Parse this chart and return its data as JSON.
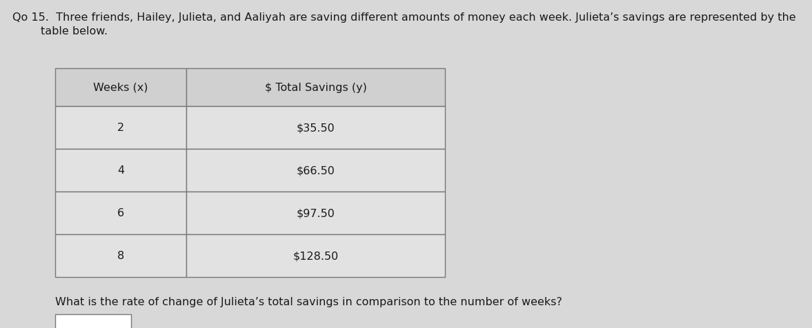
{
  "line1": "Qo 15.  Three friends, Hailey, Julieta, and Aaliyah are saving different amounts of money each week. Julieta’s savings are represented by the",
  "line2": "        table below.",
  "col1_header": "Weeks (x)",
  "col2_header": "$ Total Savings (y)",
  "rows": [
    [
      "2",
      "$35.50"
    ],
    [
      "4",
      "$66.50"
    ],
    [
      "6",
      "$97.50"
    ],
    [
      "8",
      "$128.50"
    ]
  ],
  "footer_text": "What is the rate of change of Julieta’s total savings in comparison to the number of weeks?",
  "background_color": "#d8d8d8",
  "cell_bg_color": "#e2e2e2",
  "header_bg_color": "#d0d0d0",
  "border_color": "#777777",
  "text_color": "#1a1a1a",
  "font_size": 11.5
}
